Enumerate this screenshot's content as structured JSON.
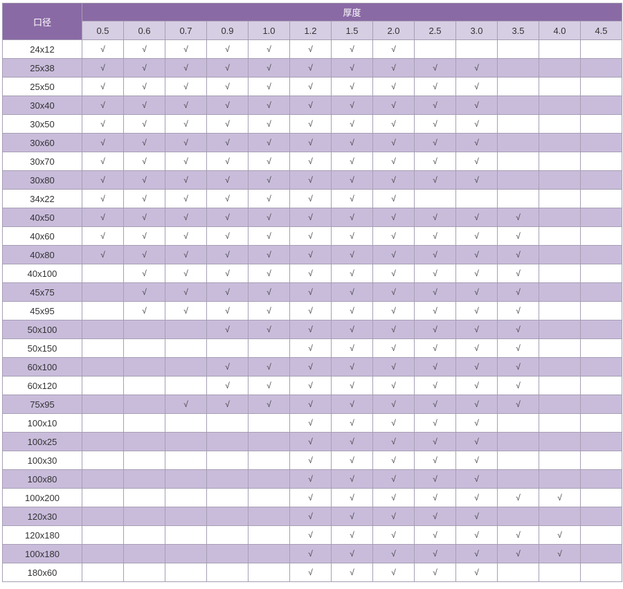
{
  "table": {
    "corner_header": "口径",
    "group_header": "厚度",
    "thickness_columns": [
      "0.5",
      "0.6",
      "0.7",
      "0.9",
      "1.0",
      "1.2",
      "1.5",
      "2.0",
      "2.5",
      "3.0",
      "3.5",
      "4.0",
      "4.5"
    ],
    "check_glyph": "√",
    "rows": [
      {
        "caliber": "24x12",
        "checks": [
          1,
          1,
          1,
          1,
          1,
          1,
          1,
          1,
          0,
          0,
          0,
          0,
          0
        ]
      },
      {
        "caliber": "25x38",
        "checks": [
          1,
          1,
          1,
          1,
          1,
          1,
          1,
          1,
          1,
          1,
          0,
          0,
          0
        ]
      },
      {
        "caliber": "25x50",
        "checks": [
          1,
          1,
          1,
          1,
          1,
          1,
          1,
          1,
          1,
          1,
          0,
          0,
          0
        ]
      },
      {
        "caliber": "30x40",
        "checks": [
          1,
          1,
          1,
          1,
          1,
          1,
          1,
          1,
          1,
          1,
          0,
          0,
          0
        ]
      },
      {
        "caliber": "30x50",
        "checks": [
          1,
          1,
          1,
          1,
          1,
          1,
          1,
          1,
          1,
          1,
          0,
          0,
          0
        ]
      },
      {
        "caliber": "30x60",
        "checks": [
          1,
          1,
          1,
          1,
          1,
          1,
          1,
          1,
          1,
          1,
          0,
          0,
          0
        ]
      },
      {
        "caliber": "30x70",
        "checks": [
          1,
          1,
          1,
          1,
          1,
          1,
          1,
          1,
          1,
          1,
          0,
          0,
          0
        ]
      },
      {
        "caliber": "30x80",
        "checks": [
          1,
          1,
          1,
          1,
          1,
          1,
          1,
          1,
          1,
          1,
          0,
          0,
          0
        ]
      },
      {
        "caliber": "34x22",
        "checks": [
          1,
          1,
          1,
          1,
          1,
          1,
          1,
          1,
          0,
          0,
          0,
          0,
          0
        ]
      },
      {
        "caliber": "40x50",
        "checks": [
          1,
          1,
          1,
          1,
          1,
          1,
          1,
          1,
          1,
          1,
          1,
          0,
          0
        ]
      },
      {
        "caliber": "40x60",
        "checks": [
          1,
          1,
          1,
          1,
          1,
          1,
          1,
          1,
          1,
          1,
          1,
          0,
          0
        ]
      },
      {
        "caliber": "40x80",
        "checks": [
          1,
          1,
          1,
          1,
          1,
          1,
          1,
          1,
          1,
          1,
          1,
          0,
          0
        ]
      },
      {
        "caliber": "40x100",
        "checks": [
          0,
          1,
          1,
          1,
          1,
          1,
          1,
          1,
          1,
          1,
          1,
          0,
          0
        ]
      },
      {
        "caliber": "45x75",
        "checks": [
          0,
          1,
          1,
          1,
          1,
          1,
          1,
          1,
          1,
          1,
          1,
          0,
          0
        ]
      },
      {
        "caliber": "45x95",
        "checks": [
          0,
          1,
          1,
          1,
          1,
          1,
          1,
          1,
          1,
          1,
          1,
          0,
          0
        ]
      },
      {
        "caliber": "50x100",
        "checks": [
          0,
          0,
          0,
          1,
          1,
          1,
          1,
          1,
          1,
          1,
          1,
          0,
          0
        ]
      },
      {
        "caliber": "50x150",
        "checks": [
          0,
          0,
          0,
          0,
          0,
          1,
          1,
          1,
          1,
          1,
          1,
          0,
          0
        ]
      },
      {
        "caliber": "60x100",
        "checks": [
          0,
          0,
          0,
          1,
          1,
          1,
          1,
          1,
          1,
          1,
          1,
          0,
          0
        ]
      },
      {
        "caliber": "60x120",
        "checks": [
          0,
          0,
          0,
          1,
          1,
          1,
          1,
          1,
          1,
          1,
          1,
          0,
          0
        ]
      },
      {
        "caliber": "75x95",
        "checks": [
          0,
          0,
          1,
          1,
          1,
          1,
          1,
          1,
          1,
          1,
          1,
          0,
          0
        ]
      },
      {
        "caliber": "100x10",
        "checks": [
          0,
          0,
          0,
          0,
          0,
          1,
          1,
          1,
          1,
          1,
          0,
          0,
          0
        ]
      },
      {
        "caliber": "100x25",
        "checks": [
          0,
          0,
          0,
          0,
          0,
          1,
          1,
          1,
          1,
          1,
          0,
          0,
          0
        ]
      },
      {
        "caliber": "100x30",
        "checks": [
          0,
          0,
          0,
          0,
          0,
          1,
          1,
          1,
          1,
          1,
          0,
          0,
          0
        ]
      },
      {
        "caliber": "100x80",
        "checks": [
          0,
          0,
          0,
          0,
          0,
          1,
          1,
          1,
          1,
          1,
          0,
          0,
          0
        ]
      },
      {
        "caliber": "100x200",
        "checks": [
          0,
          0,
          0,
          0,
          0,
          1,
          1,
          1,
          1,
          1,
          1,
          1,
          0
        ]
      },
      {
        "caliber": "120x30",
        "checks": [
          0,
          0,
          0,
          0,
          0,
          1,
          1,
          1,
          1,
          1,
          0,
          0,
          0
        ]
      },
      {
        "caliber": "120x180",
        "checks": [
          0,
          0,
          0,
          0,
          0,
          1,
          1,
          1,
          1,
          1,
          1,
          1,
          0
        ]
      },
      {
        "caliber": "100x180",
        "checks": [
          0,
          0,
          0,
          0,
          0,
          1,
          1,
          1,
          1,
          1,
          1,
          1,
          0
        ]
      },
      {
        "caliber": "180x60",
        "checks": [
          0,
          0,
          0,
          0,
          0,
          1,
          1,
          1,
          1,
          1,
          0,
          0,
          0
        ]
      }
    ]
  },
  "colors": {
    "header_dark": "#8a6aa5",
    "header_light": "#d6cee3",
    "row_purple": "#c9bcdb",
    "row_white": "#ffffff",
    "border": "#a69eb3",
    "check": "#3c3c3c"
  }
}
